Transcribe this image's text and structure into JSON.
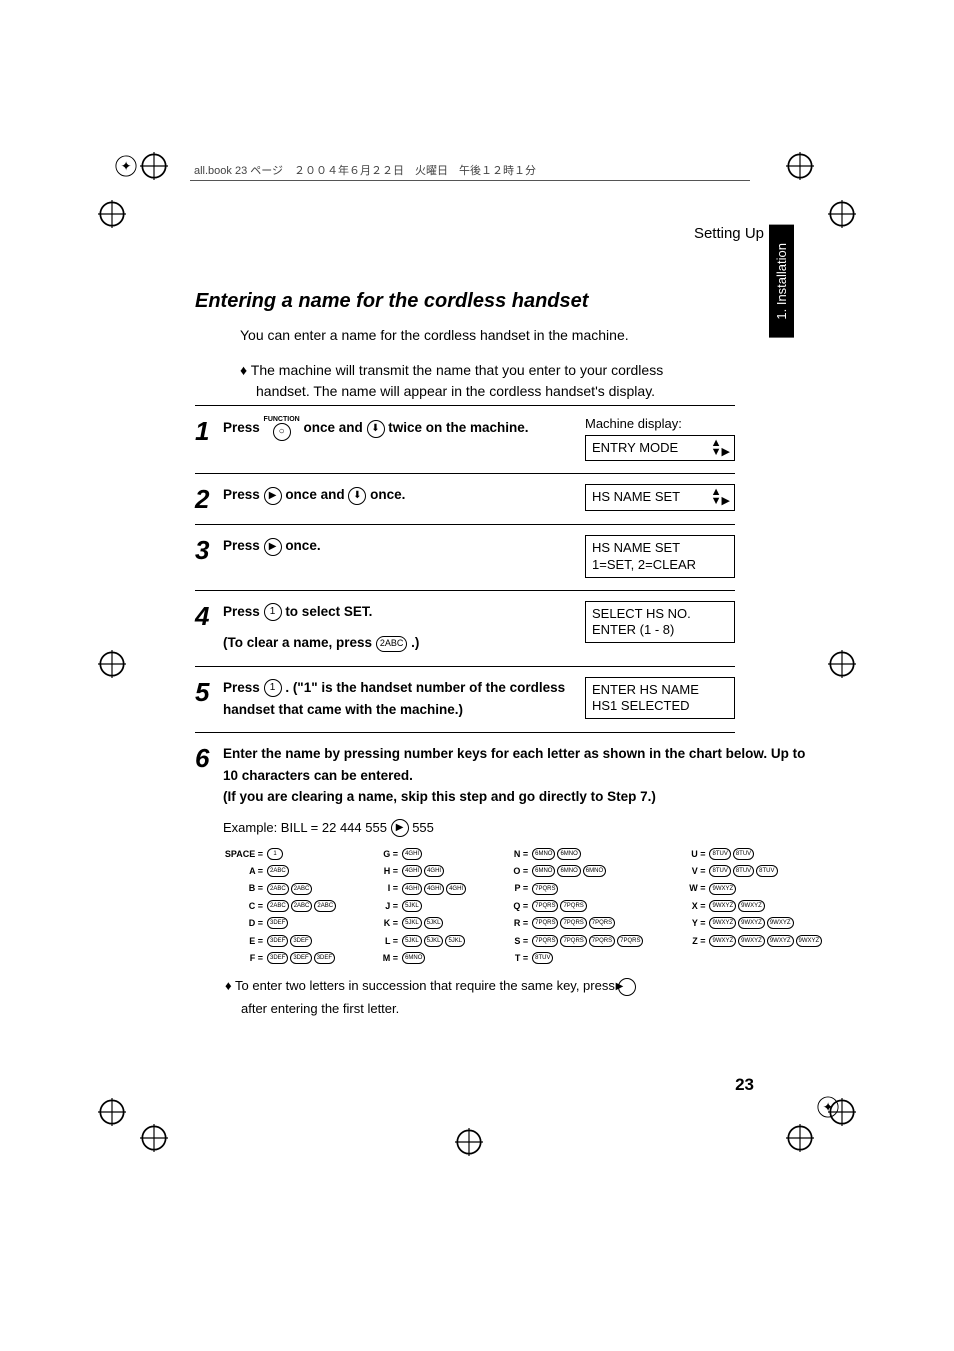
{
  "book_header": "all.book  23 ページ　２００４年６月２２日　火曜日　午後１２時１分",
  "running_header": "Setting Up",
  "side_tab": "1. Installation",
  "title": "Entering a name for the cordless handset",
  "intro_line": "You can enter a name for the cordless handset in the machine.",
  "intro_bullet": "The machine will transmit the name that you enter to your cordless handset. The name will appear in the cordless handset's display.",
  "machine_display_label": "Machine display:",
  "steps": {
    "s1": {
      "pre": "Press ",
      "func_label": "FUNCTION",
      "mid1": " once and ",
      "mid2": " twice on the machine.",
      "lcd": "ENTRY MODE"
    },
    "s2": {
      "pre": "Press ",
      "mid1": " once and ",
      "mid2": " once.",
      "lcd": "HS NAME SET"
    },
    "s3": {
      "pre": "Press ",
      "mid1": " once.",
      "lcd1": "HS NAME SET",
      "lcd2": "1=SET, 2=CLEAR"
    },
    "s4": {
      "pre": "Press ",
      "key": "1",
      "mid1": " to select SET.",
      "sub_pre": "(To clear a name, press ",
      "sub_key": "2ABC",
      "sub_post": " .)",
      "lcd1": "SELECT HS NO.",
      "lcd2": "ENTER (1 - 8)"
    },
    "s5": {
      "pre": "Press ",
      "key": "1",
      "mid1": " . (\"1\" is the handset number of the cordless handset that came with the machine.)",
      "lcd1": "ENTER HS NAME",
      "lcd2": "HS1 SELECTED"
    },
    "s6": {
      "line1": "Enter the name by pressing number keys for each letter as shown in the chart below. Up to 10 characters can be entered.",
      "line2": "(If you are clearing a name, skip this step and go directly to Step 7.)",
      "example_pre": "Example: BILL = 22  444  555 ",
      "example_post": "  555",
      "footnote_pre": "To enter two letters in succession that require the same key, press ",
      "footnote_post": "after entering the first letter."
    }
  },
  "chart": {
    "col1": [
      {
        "label": "SPACE =",
        "keys": [
          "1"
        ]
      },
      {
        "label": "A =",
        "keys": [
          "2ABC"
        ]
      },
      {
        "label": "B =",
        "keys": [
          "2ABC",
          "2ABC"
        ]
      },
      {
        "label": "C =",
        "keys": [
          "2ABC",
          "2ABC",
          "2ABC"
        ]
      },
      {
        "label": "D =",
        "keys": [
          "3DEF"
        ]
      },
      {
        "label": "E =",
        "keys": [
          "3DEF",
          "3DEF"
        ]
      },
      {
        "label": "F =",
        "keys": [
          "3DEF",
          "3DEF",
          "3DEF"
        ]
      }
    ],
    "col2": [
      {
        "label": "G =",
        "keys": [
          "4GHI"
        ]
      },
      {
        "label": "H =",
        "keys": [
          "4GHI",
          "4GHI"
        ]
      },
      {
        "label": "I =",
        "keys": [
          "4GHI",
          "4GHI",
          "4GHI"
        ]
      },
      {
        "label": "J =",
        "keys": [
          "5JKL"
        ]
      },
      {
        "label": "K =",
        "keys": [
          "5JKL",
          "5JKL"
        ]
      },
      {
        "label": "L =",
        "keys": [
          "5JKL",
          "5JKL",
          "5JKL"
        ]
      },
      {
        "label": "M =",
        "keys": [
          "6MNO"
        ]
      }
    ],
    "col3": [
      {
        "label": "N =",
        "keys": [
          "6MNO",
          "6MNO"
        ]
      },
      {
        "label": "O =",
        "keys": [
          "6MNO",
          "6MNO",
          "6MNO"
        ]
      },
      {
        "label": "P =",
        "keys": [
          "7PQRS"
        ]
      },
      {
        "label": "Q =",
        "keys": [
          "7PQRS",
          "7PQRS"
        ]
      },
      {
        "label": "R =",
        "keys": [
          "7PQRS",
          "7PQRS",
          "7PQRS"
        ]
      },
      {
        "label": "S =",
        "keys": [
          "7PQRS",
          "7PQRS",
          "7PQRS",
          "7PQRS"
        ]
      },
      {
        "label": "T =",
        "keys": [
          "8TUV"
        ]
      }
    ],
    "col4": [
      {
        "label": "U =",
        "keys": [
          "8TUV",
          "8TUV"
        ]
      },
      {
        "label": "V =",
        "keys": [
          "8TUV",
          "8TUV",
          "8TUV"
        ]
      },
      {
        "label": "W =",
        "keys": [
          "9WXYZ"
        ]
      },
      {
        "label": "X =",
        "keys": [
          "9WXYZ",
          "9WXYZ"
        ]
      },
      {
        "label": "Y =",
        "keys": [
          "9WXYZ",
          "9WXYZ",
          "9WXYZ"
        ]
      },
      {
        "label": "Z =",
        "keys": [
          "9WXYZ",
          "9WXYZ",
          "9WXYZ",
          "9WXYZ"
        ]
      }
    ]
  },
  "page_number": "23",
  "colors": {
    "text": "#000000",
    "bg": "#ffffff",
    "tab_bg": "#000000",
    "tab_fg": "#ffffff"
  }
}
